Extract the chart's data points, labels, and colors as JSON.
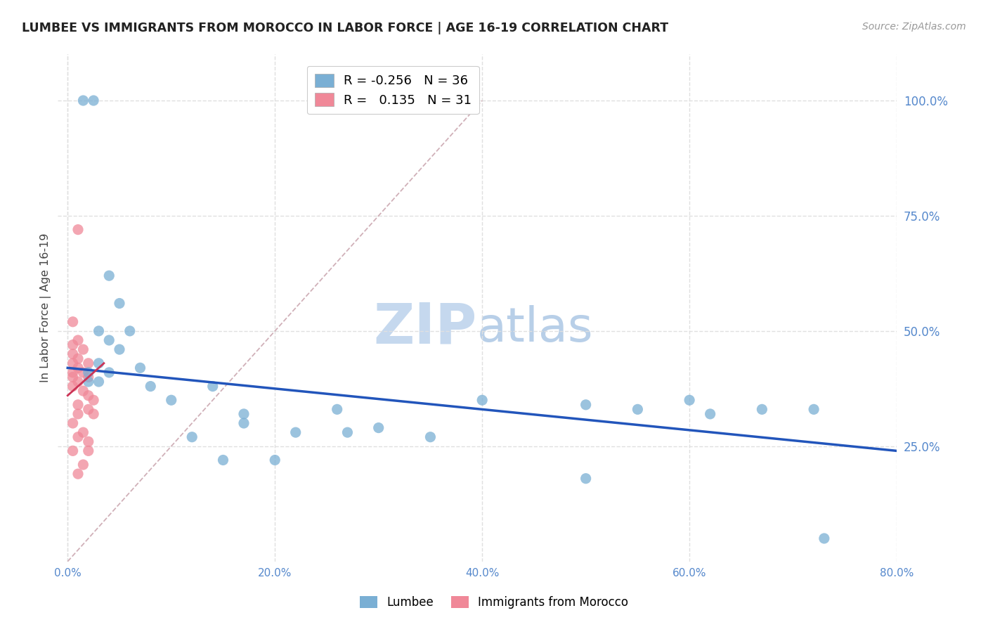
{
  "title": "LUMBEE VS IMMIGRANTS FROM MOROCCO IN LABOR FORCE | AGE 16-19 CORRELATION CHART",
  "source": "Source: ZipAtlas.com",
  "ylabel": "In Labor Force | Age 16-19",
  "x_tick_labels": [
    "0.0%",
    "20.0%",
    "40.0%",
    "60.0%",
    "80.0%"
  ],
  "x_tick_values": [
    0,
    20,
    40,
    60,
    80
  ],
  "y_tick_labels": [
    "100.0%",
    "75.0%",
    "50.0%",
    "25.0%"
  ],
  "y_tick_values": [
    100,
    75,
    50,
    25
  ],
  "xlim": [
    -1,
    80
  ],
  "ylim": [
    0,
    110
  ],
  "legend_entries": [
    {
      "label": "R = -0.256   N = 36",
      "color": "#a8c4e0"
    },
    {
      "label": "R =   0.135   N = 31",
      "color": "#f0a0b0"
    }
  ],
  "legend_label_lumbee": "Lumbee",
  "legend_label_morocco": "Immigrants from Morocco",
  "blue_scatter": [
    [
      1.5,
      100
    ],
    [
      2.5,
      100
    ],
    [
      4,
      62
    ],
    [
      5,
      56
    ],
    [
      3,
      50
    ],
    [
      6,
      50
    ],
    [
      4,
      48
    ],
    [
      5,
      46
    ],
    [
      3,
      43
    ],
    [
      7,
      42
    ],
    [
      2,
      41
    ],
    [
      4,
      41
    ],
    [
      2,
      39
    ],
    [
      3,
      39
    ],
    [
      8,
      38
    ],
    [
      14,
      38
    ],
    [
      10,
      35
    ],
    [
      17,
      32
    ],
    [
      17,
      30
    ],
    [
      22,
      28
    ],
    [
      35,
      27
    ],
    [
      40,
      35
    ],
    [
      50,
      34
    ],
    [
      50,
      18
    ],
    [
      55,
      33
    ],
    [
      60,
      35
    ],
    [
      62,
      32
    ],
    [
      67,
      33
    ],
    [
      72,
      33
    ],
    [
      73,
      5
    ],
    [
      12,
      27
    ],
    [
      15,
      22
    ],
    [
      20,
      22
    ],
    [
      26,
      33
    ],
    [
      27,
      28
    ],
    [
      30,
      29
    ]
  ],
  "pink_scatter": [
    [
      1,
      72
    ],
    [
      0.5,
      52
    ],
    [
      1,
      48
    ],
    [
      0.5,
      47
    ],
    [
      1.5,
      46
    ],
    [
      0.5,
      45
    ],
    [
      1,
      44
    ],
    [
      0.5,
      43
    ],
    [
      2,
      43
    ],
    [
      1,
      42
    ],
    [
      0.5,
      41
    ],
    [
      1.5,
      41
    ],
    [
      0.5,
      40
    ],
    [
      2,
      40
    ],
    [
      1,
      39
    ],
    [
      0.5,
      38
    ],
    [
      1.5,
      37
    ],
    [
      2,
      36
    ],
    [
      2.5,
      35
    ],
    [
      1,
      34
    ],
    [
      2,
      33
    ],
    [
      1,
      32
    ],
    [
      2.5,
      32
    ],
    [
      0.5,
      30
    ],
    [
      1.5,
      28
    ],
    [
      1,
      27
    ],
    [
      2,
      26
    ],
    [
      0.5,
      24
    ],
    [
      2,
      24
    ],
    [
      1.5,
      21
    ],
    [
      1,
      19
    ]
  ],
  "blue_line_x": [
    0,
    80
  ],
  "blue_line_y": [
    42,
    24
  ],
  "pink_line_x": [
    0,
    3.5
  ],
  "pink_line_y": [
    36,
    43
  ],
  "ref_line_x": [
    0,
    40
  ],
  "ref_line_y": [
    0,
    100
  ],
  "scatter_size": 120,
  "blue_color": "#7aafd4",
  "pink_color": "#f08898",
  "blue_line_color": "#2255bb",
  "pink_line_color": "#cc3355",
  "ref_line_color": "#d0b0b8",
  "background_color": "#ffffff",
  "grid_color": "#e0e0e0",
  "title_color": "#222222",
  "axis_label_color": "#444444",
  "tick_color": "#5588cc",
  "watermark_zip": "ZIP",
  "watermark_atlas": "atlas",
  "watermark_color_zip": "#c5d8ee",
  "watermark_color_atlas": "#b8cfe8",
  "watermark_fontsize": 58
}
